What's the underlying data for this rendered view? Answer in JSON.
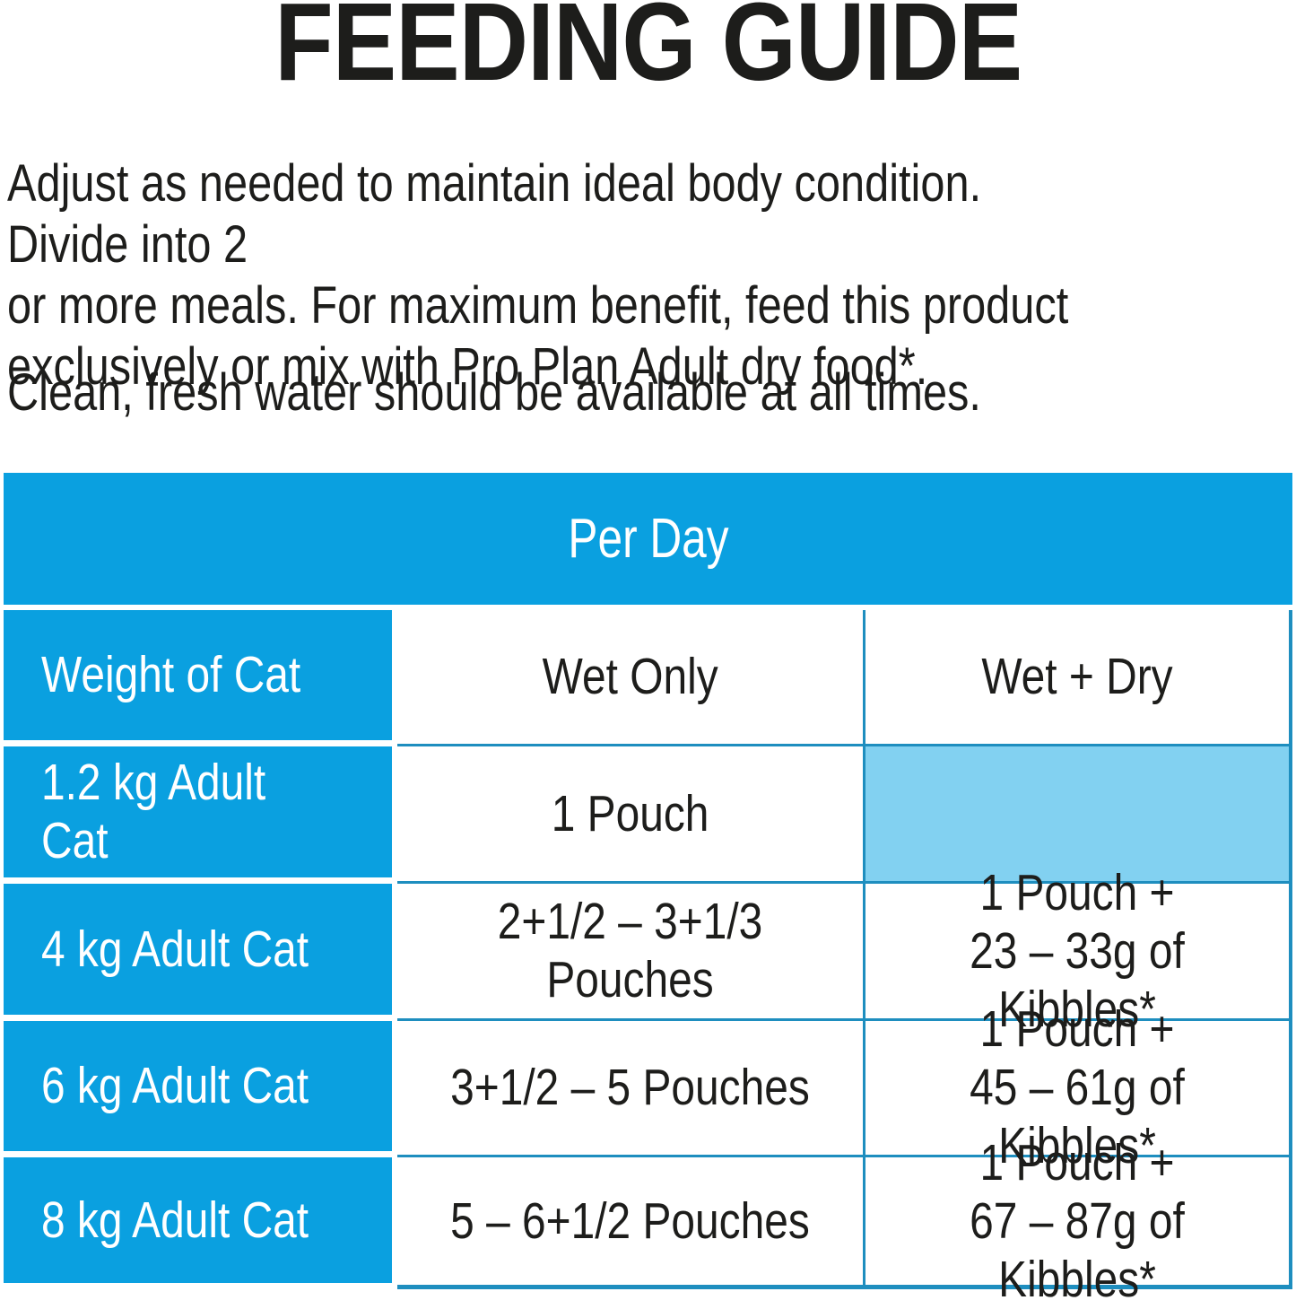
{
  "title": "FEEDING GUIDE",
  "intro": {
    "paragraph1": "Adjust as needed to maintain ideal body condition. Divide into 2\nor more meals. For maximum benefit, feed this product\nexclusively or mix with Pro Plan Adult dry food*.",
    "paragraph2": "Clean, fresh water should be available at all times."
  },
  "table": {
    "span_header": "Per Day",
    "columns": [
      "Weight of Cat",
      "Wet Only",
      "Wet + Dry"
    ],
    "rows": [
      {
        "weight": "1.2 kg Adult Cat",
        "wet_only": "1 Pouch",
        "wet_plus_dry": ""
      },
      {
        "weight": "4 kg Adult Cat",
        "wet_only": "2+1/2 – 3+1/3 Pouches",
        "wet_plus_dry": "1 Pouch +\n23 – 33g of Kibbles*"
      },
      {
        "weight": "6 kg Adult Cat",
        "wet_only": "3+1/2 – 5 Pouches",
        "wet_plus_dry": "1 Pouch +\n45 – 61g of Kibbles*"
      },
      {
        "weight": "8 kg Adult Cat",
        "wet_only": "5 – 6+1/2 Pouches",
        "wet_plus_dry": "1 Pouch +\n67 – 87g of Kibbles*"
      }
    ]
  },
  "colors": {
    "blue": "#0aa0e0",
    "light-blue": "#82d1f1",
    "line-blue": "#1e8ebf",
    "text": "#1d1d1b"
  }
}
